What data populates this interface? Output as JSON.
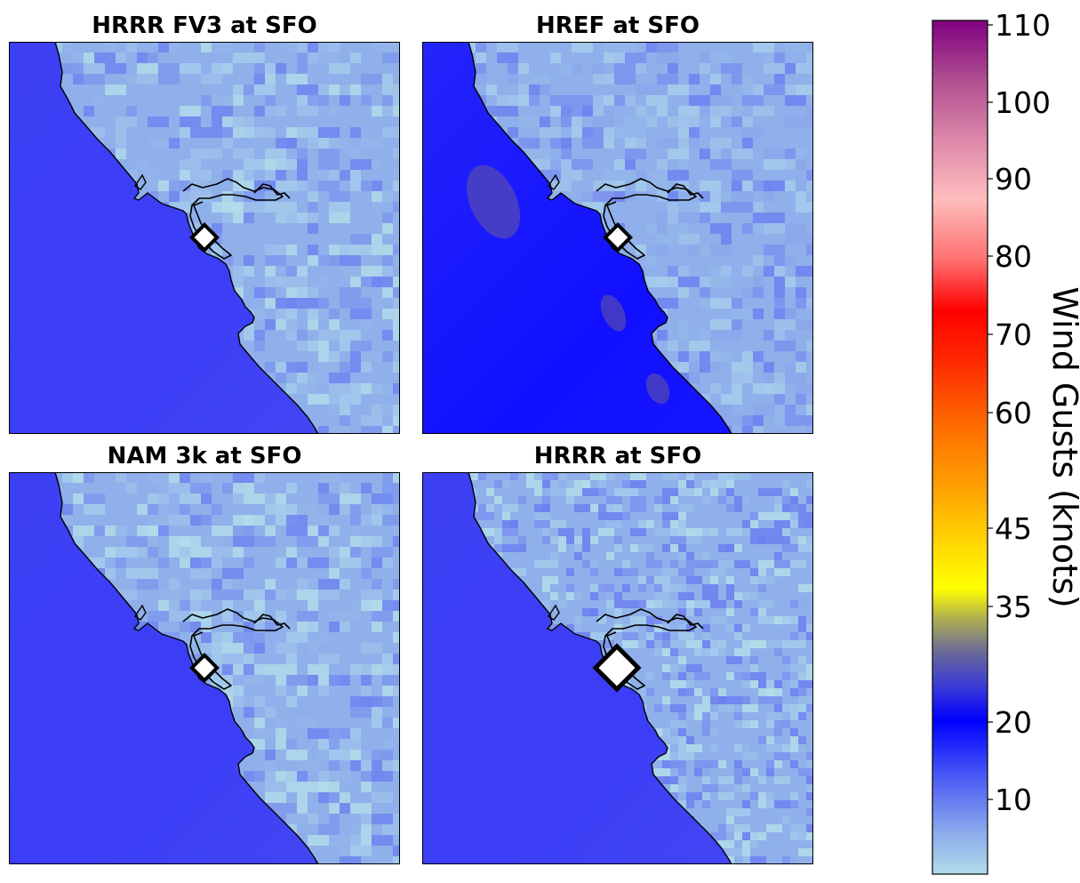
{
  "panels": [
    {
      "title": "HRRR FV3 at SFO",
      "variant": "fv3",
      "marker": "small"
    },
    {
      "title": "HREF at SFO",
      "variant": "href",
      "marker": "small"
    },
    {
      "title": "NAM 3k at SFO",
      "variant": "nam",
      "marker": "small"
    },
    {
      "title": "HRRR at SFO",
      "variant": "hrrr",
      "marker": "large"
    }
  ],
  "colorbar": {
    "label": "Wind Gusts (knots)",
    "ticks": [
      "110",
      "100",
      "90",
      "80",
      "70",
      "60",
      "45",
      "35",
      "20",
      "10"
    ],
    "colors": {
      "ocean": "#3d40f5",
      "ocean_deep": "#2424fb",
      "land_light": "#a5cdec",
      "land_mid": "#8fb0ea",
      "land_blue": "#6a7ff0",
      "coast": "#000000",
      "marker_fill": "#ffffff",
      "marker_edge": "#000000"
    }
  },
  "station": "SFO"
}
